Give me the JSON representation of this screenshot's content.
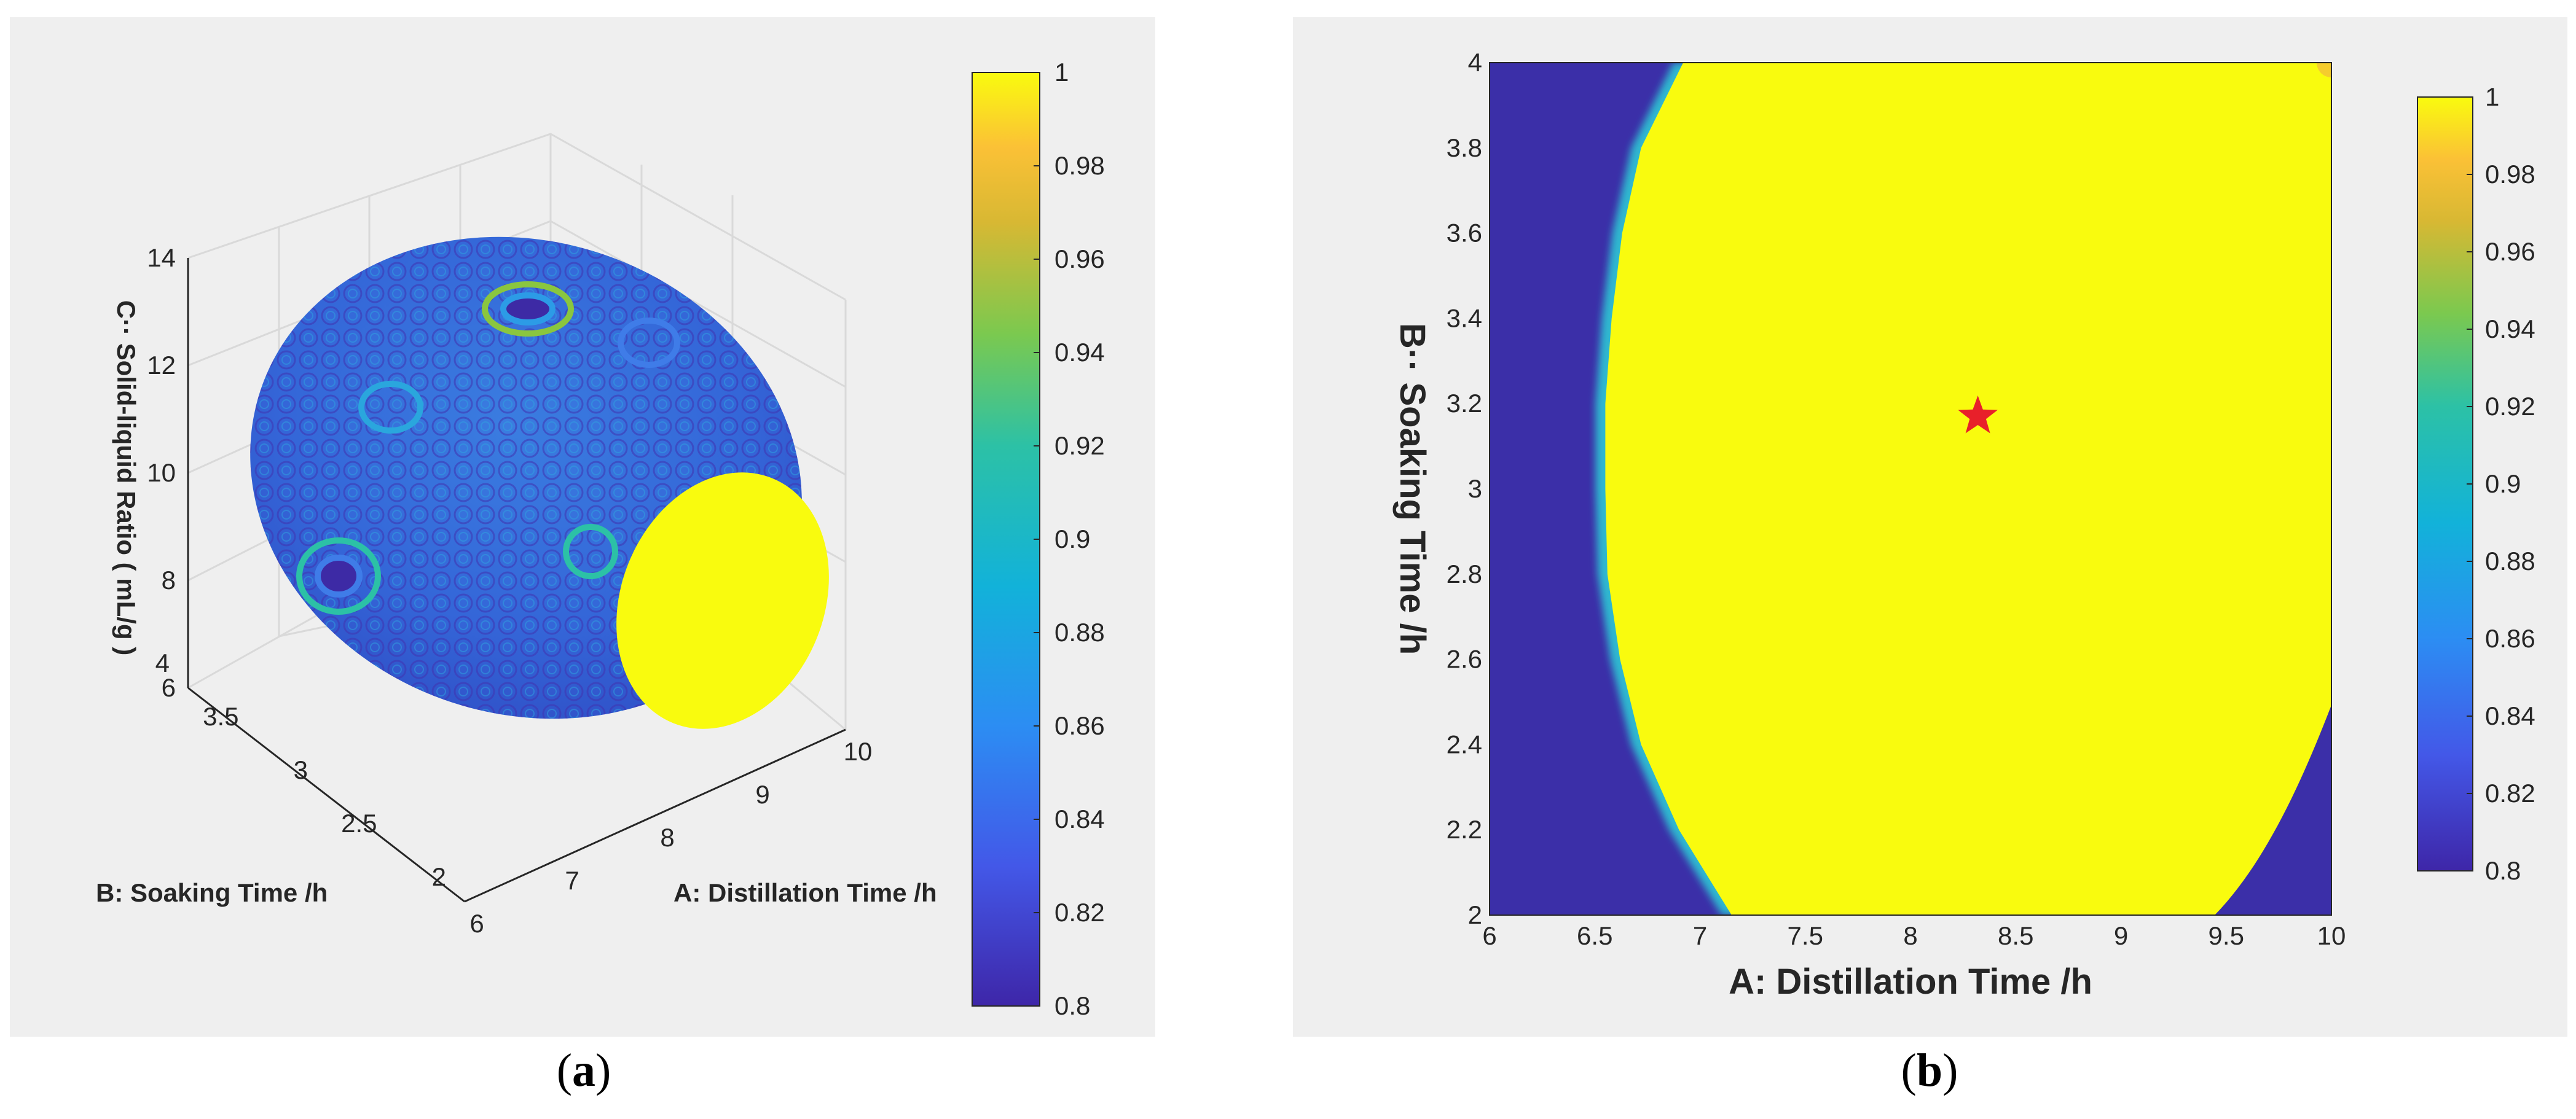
{
  "colorbar_ticks": [
    "0.8",
    "0.82",
    "0.84",
    "0.86",
    "0.88",
    "0.9",
    "0.92",
    "0.94",
    "0.96",
    "0.98",
    "1"
  ],
  "captions": {
    "a": "a",
    "b": "b"
  },
  "colors": {
    "low": "#3b2fa8",
    "high": "#f9fb0e",
    "marker": "#e8202a",
    "panel_bg": "#efefef"
  },
  "chart_data": [
    {
      "id": "a",
      "type": "scatter",
      "title": "",
      "description_3d": "ellipsoid surface coloured by desirability",
      "xlabel": "A:   Distillation Time /h",
      "ylabel": "B:   Soaking Time /h",
      "zlabel": "C·· Solid-liquid Ratio  ( mL/g )",
      "x_ticks": [
        "6",
        "7",
        "8",
        "9",
        "10"
      ],
      "y_ticks": [
        "2",
        "2.5",
        "3",
        "3.5",
        "4"
      ],
      "z_ticks": [
        "6",
        "8",
        "10",
        "12",
        "14"
      ],
      "xlim": [
        6,
        10
      ],
      "ylim": [
        2,
        4
      ],
      "zlim": [
        6,
        14
      ],
      "color_range": [
        0.8,
        1
      ],
      "grid": true
    },
    {
      "id": "b",
      "type": "heatmap",
      "title": "",
      "xlabel": "A:   Distillation Time /h",
      "ylabel": "B·· Soaking Time /h",
      "x_ticks": [
        "6",
        "6.5",
        "7",
        "7.5",
        "8",
        "8.5",
        "9",
        "9.5",
        "10"
      ],
      "y_ticks": [
        "2",
        "2.2",
        "2.4",
        "2.6",
        "2.8",
        "3",
        "3.2",
        "3.4",
        "3.6",
        "3.8",
        "4"
      ],
      "xlim": [
        6,
        10
      ],
      "ylim": [
        2,
        4
      ],
      "color_range": [
        0.8,
        1
      ],
      "optimum": {
        "x": 8.32,
        "y": 3.17
      },
      "high_region_boundary_x": [
        {
          "y": 2.0,
          "x": 7.15
        },
        {
          "y": 2.2,
          "x": 6.9
        },
        {
          "y": 2.4,
          "x": 6.72
        },
        {
          "y": 2.6,
          "x": 6.62
        },
        {
          "y": 2.8,
          "x": 6.56
        },
        {
          "y": 3.0,
          "x": 6.55
        },
        {
          "y": 3.2,
          "x": 6.55
        },
        {
          "y": 3.4,
          "x": 6.58
        },
        {
          "y": 3.6,
          "x": 6.63
        },
        {
          "y": 3.8,
          "x": 6.72
        },
        {
          "y": 4.0,
          "x": 6.92
        }
      ]
    }
  ]
}
